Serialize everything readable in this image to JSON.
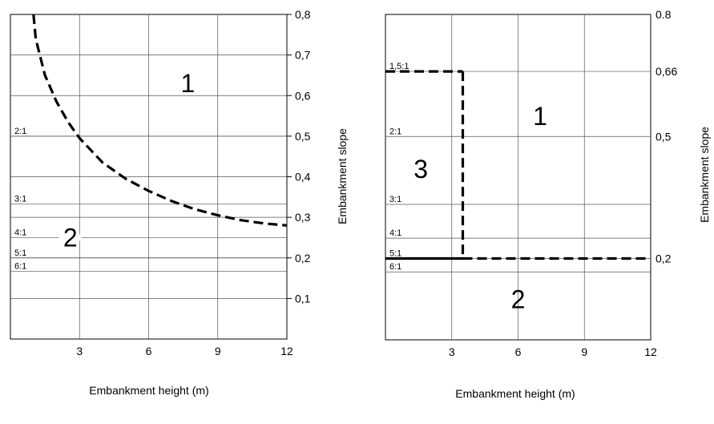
{
  "chart_data": [
    {
      "type": "line",
      "xlabel": "Embankment height (m)",
      "ylabel": "Embankment slope",
      "x_ticks": [
        "3",
        "6",
        "9",
        "12"
      ],
      "y_ticks": [
        "0,1",
        "0,2",
        "0,3",
        "0,4",
        "0,5",
        "0,6",
        "0,7",
        "0,8"
      ],
      "xlim": [
        0,
        12
      ],
      "ylim": [
        0,
        0.8
      ],
      "grid": true,
      "slope_lines": [
        {
          "label": "2:1",
          "y": 0.5
        },
        {
          "label": "3:1",
          "y": 0.333
        },
        {
          "label": "4:1",
          "y": 0.25
        },
        {
          "label": "5:1",
          "y": 0.2
        },
        {
          "label": "6:1",
          "y": 0.167
        }
      ],
      "region_labels": [
        {
          "text": "1",
          "x": 7.7,
          "y": 0.63
        },
        {
          "text": "2",
          "x": 2.6,
          "y": 0.25
        }
      ],
      "series": [
        {
          "style": "dashed",
          "x": [
            1.0,
            1.1,
            1.5,
            2.0,
            2.5,
            3.0,
            4.0,
            5.0,
            6.0,
            7.0,
            8.0,
            9.0,
            10.0,
            11.0,
            12.0
          ],
          "y": [
            0.8,
            0.74,
            0.65,
            0.585,
            0.535,
            0.495,
            0.435,
            0.395,
            0.365,
            0.34,
            0.32,
            0.305,
            0.293,
            0.285,
            0.28
          ]
        }
      ]
    },
    {
      "type": "line",
      "xlabel": "Embankment height  (m)",
      "ylabel": "Embankment slope",
      "x_ticks": [
        "3",
        "6",
        "9",
        "12"
      ],
      "y_ticks": [
        "0,2",
        "0,5",
        "0,66",
        "0.8"
      ],
      "y_tick_values": [
        0.2,
        0.5,
        0.66,
        0.8
      ],
      "xlim": [
        0,
        12
      ],
      "ylim": [
        0,
        0.8
      ],
      "grid": true,
      "slope_lines": [
        {
          "label": "1,5:1",
          "y": 0.66
        },
        {
          "label": "2:1",
          "y": 0.5
        },
        {
          "label": "3:1",
          "y": 0.333
        },
        {
          "label": "4:1",
          "y": 0.25
        },
        {
          "label": "5:1",
          "y": 0.2
        },
        {
          "label": "6:1",
          "y": 0.167
        }
      ],
      "region_labels": [
        {
          "text": "1",
          "x": 7.0,
          "y": 0.55
        },
        {
          "text": "2",
          "x": 6.0,
          "y": 0.1
        },
        {
          "text": "3",
          "x": 1.6,
          "y": 0.42
        }
      ],
      "series": [
        {
          "style": "dashed",
          "x": [
            0.0,
            3.5
          ],
          "y": [
            0.66,
            0.66
          ]
        },
        {
          "style": "dashed",
          "x": [
            3.5,
            3.5
          ],
          "y": [
            0.66,
            0.2
          ]
        },
        {
          "style": "solid",
          "x": [
            0.0,
            3.5
          ],
          "y": [
            0.2,
            0.2
          ]
        },
        {
          "style": "dashed",
          "x": [
            3.5,
            12.0
          ],
          "y": [
            0.2,
            0.2
          ]
        }
      ]
    }
  ]
}
